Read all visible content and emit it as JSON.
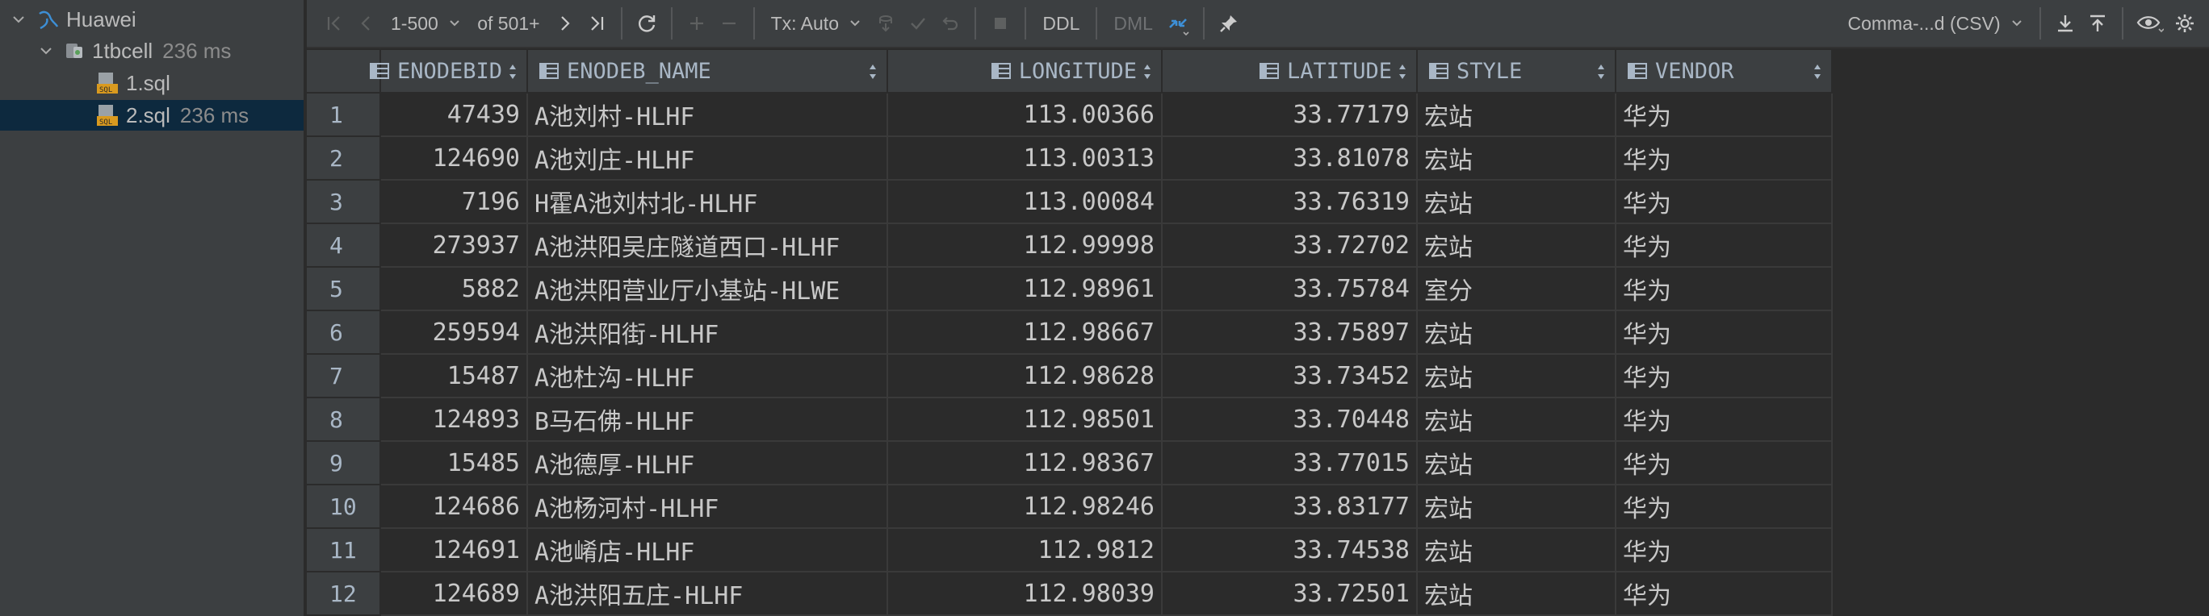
{
  "tree": {
    "root": {
      "label": "Huawei",
      "icon": "database-icon"
    },
    "schema": {
      "label": "1tbcell",
      "meta": "236 ms",
      "icon": "schema-icon"
    },
    "files": [
      {
        "label": "1.sql",
        "meta": "",
        "icon": "sql-file-icon"
      },
      {
        "label": "2.sql",
        "meta": "236 ms",
        "icon": "sql-file-icon",
        "selected": true
      }
    ]
  },
  "toolbar": {
    "range": "1-500",
    "of_total": "of 501+",
    "tx_mode": "Tx: Auto",
    "ddl": "DDL",
    "dml": "DML",
    "export_format": "Comma-...d (CSV)"
  },
  "grid": {
    "columns": [
      "ENODEBID",
      "ENODEB_NAME",
      "LONGITUDE",
      "LATITUDE",
      "STYLE",
      "VENDOR"
    ],
    "rows": [
      {
        "n": "1",
        "id": "47439",
        "name": "A池刘村-HLHF",
        "lon": "113.00366",
        "lat": "33.77179",
        "style": "宏站",
        "vendor": "华为"
      },
      {
        "n": "2",
        "id": "124690",
        "name": "A池刘庄-HLHF",
        "lon": "113.00313",
        "lat": "33.81078",
        "style": "宏站",
        "vendor": "华为"
      },
      {
        "n": "3",
        "id": "7196",
        "name": "H霍A池刘村北-HLHF",
        "lon": "113.00084",
        "lat": "33.76319",
        "style": "宏站",
        "vendor": "华为"
      },
      {
        "n": "4",
        "id": "273937",
        "name": "A池洪阳吴庄隧道西口-HLHF",
        "lon": "112.99998",
        "lat": "33.72702",
        "style": "宏站",
        "vendor": "华为"
      },
      {
        "n": "5",
        "id": "5882",
        "name": "A池洪阳营业厅小基站-HLWE",
        "lon": "112.98961",
        "lat": "33.75784",
        "style": "室分",
        "vendor": "华为"
      },
      {
        "n": "6",
        "id": "259594",
        "name": "A池洪阳街-HLHF",
        "lon": "112.98667",
        "lat": "33.75897",
        "style": "宏站",
        "vendor": "华为"
      },
      {
        "n": "7",
        "id": "15487",
        "name": "A池杜沟-HLHF",
        "lon": "112.98628",
        "lat": "33.73452",
        "style": "宏站",
        "vendor": "华为"
      },
      {
        "n": "8",
        "id": "124893",
        "name": "B马石佛-HLHF",
        "lon": "112.98501",
        "lat": "33.70448",
        "style": "宏站",
        "vendor": "华为"
      },
      {
        "n": "9",
        "id": "15485",
        "name": "A池德厚-HLHF",
        "lon": "112.98367",
        "lat": "33.77015",
        "style": "宏站",
        "vendor": "华为"
      },
      {
        "n": "10",
        "id": "124686",
        "name": "A池杨河村-HLHF",
        "lon": "112.98246",
        "lat": "33.83177",
        "style": "宏站",
        "vendor": "华为"
      },
      {
        "n": "11",
        "id": "124691",
        "name": "A池崤店-HLHF",
        "lon": "112.9812",
        "lat": "33.74538",
        "style": "宏站",
        "vendor": "华为"
      },
      {
        "n": "12",
        "id": "124689",
        "name": "A池洪阳五庄-HLHF",
        "lon": "112.98039",
        "lat": "33.72501",
        "style": "宏站",
        "vendor": "华为"
      }
    ]
  }
}
